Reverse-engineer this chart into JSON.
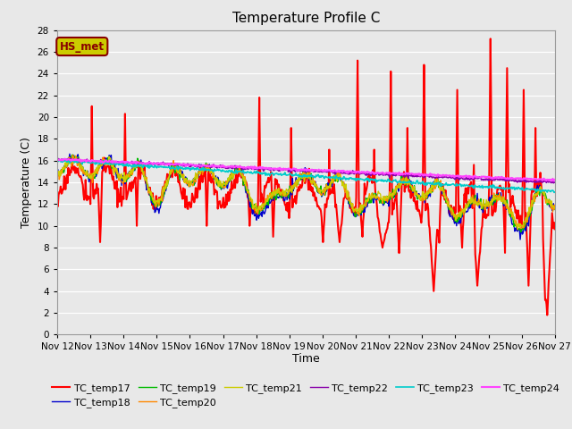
{
  "title": "Temperature Profile C",
  "xlabel": "Time",
  "ylabel": "Temperature (C)",
  "ylim": [
    0,
    28
  ],
  "yticks": [
    0,
    2,
    4,
    6,
    8,
    10,
    12,
    14,
    16,
    18,
    20,
    22,
    24,
    26,
    28
  ],
  "xtick_labels": [
    "Nov 12",
    "Nov 13",
    "Nov 14",
    "Nov 15",
    "Nov 16",
    "Nov 17",
    "Nov 18",
    "Nov 19",
    "Nov 20",
    "Nov 21",
    "Nov 22",
    "Nov 23",
    "Nov 24",
    "Nov 25",
    "Nov 26",
    "Nov 27"
  ],
  "series_colors": {
    "TC_temp17": "#ff0000",
    "TC_temp18": "#0000cc",
    "TC_temp19": "#00bb00",
    "TC_temp20": "#ff8800",
    "TC_temp21": "#cccc00",
    "TC_temp22": "#8800aa",
    "TC_temp23": "#00cccc",
    "TC_temp24": "#ff44ff"
  },
  "annotation_text": "HS_met",
  "annotation_color": "#880000",
  "annotation_bg": "#cccc00",
  "bg_color": "#e8e8e8",
  "title_fontsize": 11,
  "axis_fontsize": 9,
  "tick_fontsize": 7.5,
  "legend_fontsize": 8
}
